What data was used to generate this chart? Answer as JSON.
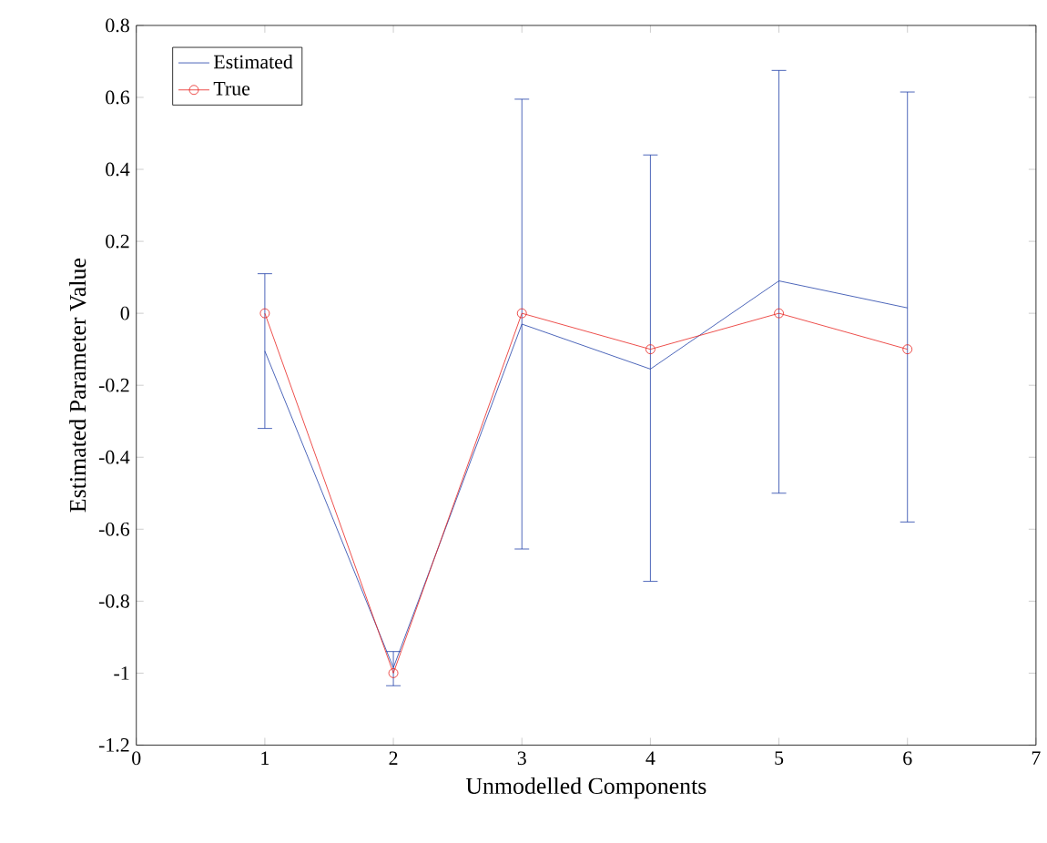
{
  "chart_data": {
    "type": "line",
    "xlabel": "Unmodelled Components",
    "ylabel": "Estimated Parameter Value",
    "x": [
      1,
      2,
      3,
      4,
      5,
      6
    ],
    "series": [
      {
        "name": "Estimated",
        "color": "#1f3fa8",
        "values": [
          -0.105,
          -0.985,
          -0.03,
          -0.155,
          0.09,
          0.015
        ],
        "errors": [
          [
            -0.32,
            0.11
          ],
          [
            -1.035,
            -0.94
          ],
          [
            -0.655,
            0.595
          ],
          [
            -0.745,
            0.44
          ],
          [
            -0.5,
            0.675
          ],
          [
            -0.58,
            0.615
          ]
        ],
        "marker": "none"
      },
      {
        "name": "True",
        "color": "#e8221e",
        "values": [
          0,
          -1,
          0,
          -0.1,
          0,
          -0.1
        ],
        "marker": "circle"
      }
    ],
    "xlim": [
      0,
      7
    ],
    "xticks": [
      0,
      1,
      2,
      3,
      4,
      5,
      6,
      7
    ],
    "ylim": [
      -1.2,
      0.8
    ],
    "yticks": [
      -1.2,
      -1,
      -0.8,
      -0.6,
      -0.4,
      -0.2,
      0,
      0.2,
      0.4,
      0.6,
      0.8
    ],
    "legend": "top left",
    "grid": false
  }
}
